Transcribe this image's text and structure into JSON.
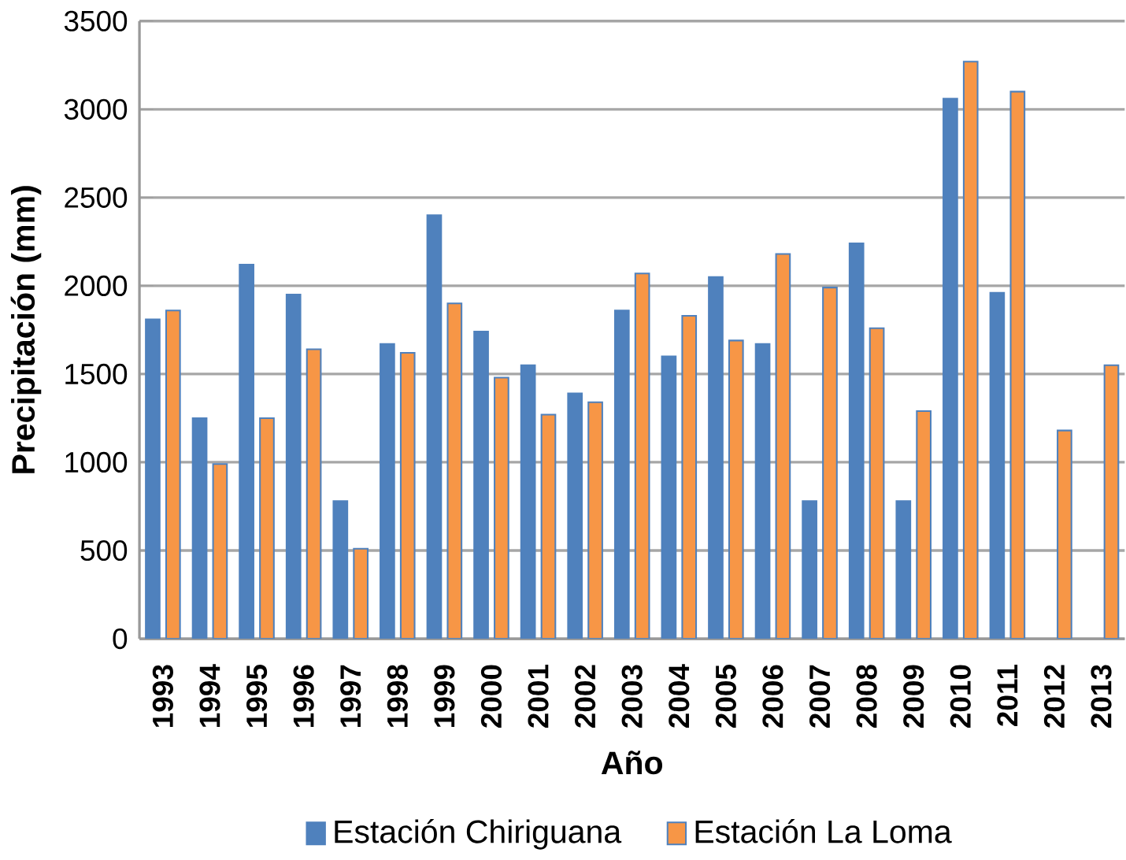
{
  "chart_data": {
    "type": "bar",
    "xlabel": "Año",
    "ylabel": "Precipitación (mm)",
    "categories": [
      "1993",
      "1994",
      "1995",
      "1996",
      "1997",
      "1998",
      "1999",
      "2000",
      "2001",
      "2002",
      "2003",
      "2004",
      "2005",
      "2006",
      "2007",
      "2008",
      "2009",
      "2010",
      "2011",
      "2012",
      "2013"
    ],
    "series": [
      {
        "name": "Estación Chiriguana",
        "color": "#4f81bd",
        "values": [
          1810,
          1250,
          2120,
          1950,
          780,
          1670,
          2400,
          1740,
          1550,
          1390,
          1860,
          1600,
          2050,
          1670,
          780,
          2240,
          780,
          3060,
          1960,
          null,
          null
        ]
      },
      {
        "name": "Estación La Loma",
        "color": "#f79646",
        "values": [
          1860,
          990,
          1250,
          1640,
          510,
          1620,
          1900,
          1480,
          1270,
          1340,
          2070,
          1830,
          1690,
          2180,
          1990,
          1760,
          1290,
          3270,
          3100,
          1180,
          1550
        ]
      }
    ],
    "ylim": [
      0,
      3500
    ],
    "yticks": [
      0,
      500,
      1000,
      1500,
      2000,
      2500,
      3000,
      3500
    ],
    "grid": "y",
    "legend": "bottom"
  }
}
